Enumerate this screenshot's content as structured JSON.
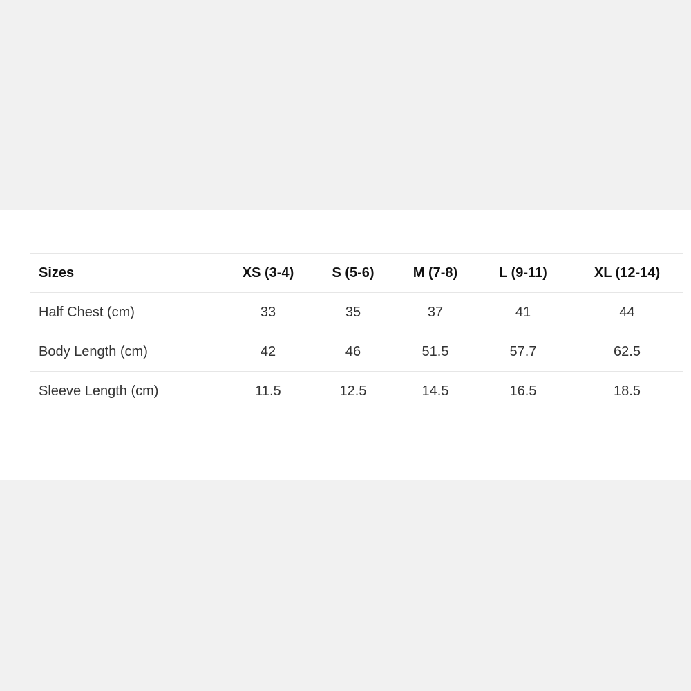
{
  "table": {
    "headers": [
      "Sizes",
      "XS (3-4)",
      "S (5-6)",
      "M (7-8)",
      "L (9-11)",
      "XL (12-14)"
    ],
    "rows": [
      [
        "Half Chest (cm)",
        "33",
        "35",
        "37",
        "41",
        "44"
      ],
      [
        "Body Length (cm)",
        "42",
        "46",
        "51.5",
        "57.7",
        "62.5"
      ],
      [
        "Sleeve Length (cm)",
        "11.5",
        "12.5",
        "14.5",
        "16.5",
        "18.5"
      ]
    ]
  },
  "colors": {
    "page_background": "#f1f1f1",
    "panel_background": "#ffffff",
    "text": "#333333",
    "divider": "#e6e6e6"
  }
}
